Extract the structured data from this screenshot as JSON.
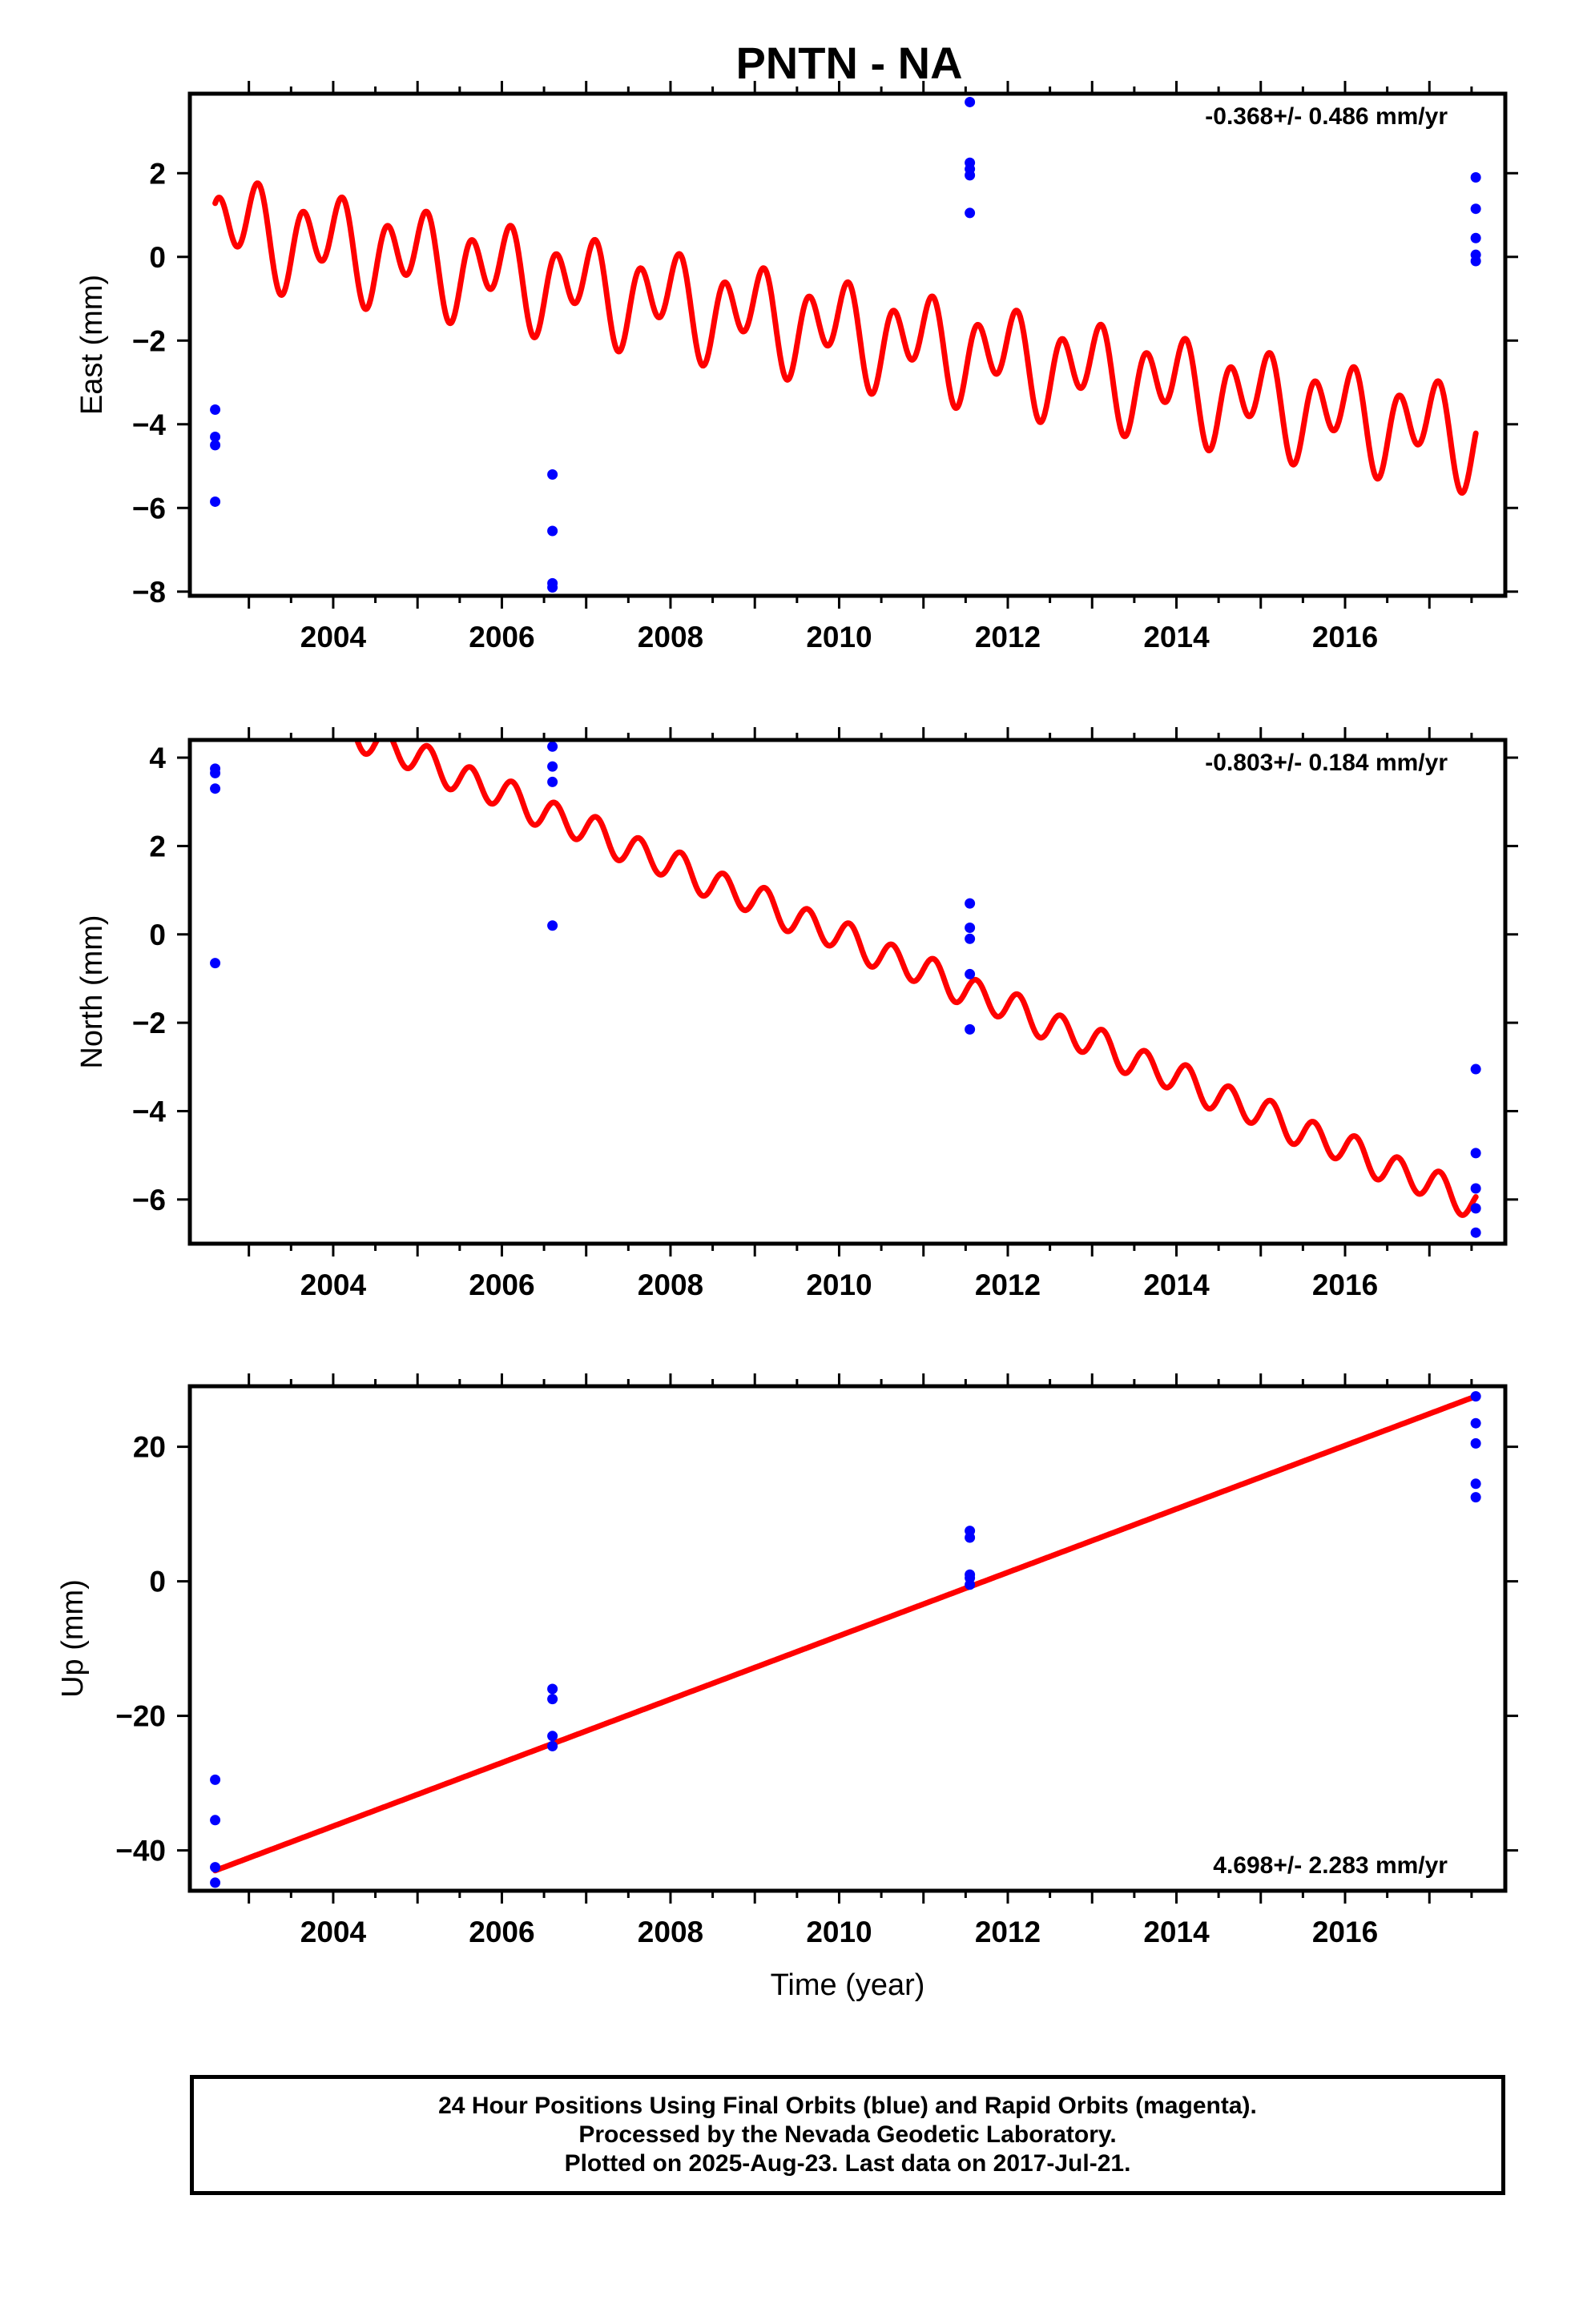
{
  "title": "PNTN - NA",
  "xlabel": "Time (year)",
  "colors": {
    "model": "#ff0000",
    "final_orbits": "#0000ff",
    "frame": "#000000"
  },
  "chart_data": [
    {
      "type": "scatter",
      "component": "East",
      "ylabel": "East (mm)",
      "rate": "-0.368+/- 0.486 mm/yr",
      "rate_position": "top-right",
      "xlim": [
        2002.3,
        2017.9
      ],
      "ylim": [
        -8.1,
        3.9
      ],
      "xticks": [
        "2004",
        "2006",
        "2008",
        "2010",
        "2012",
        "2014",
        "2016"
      ],
      "yticks": [
        "2",
        "0",
        "−2",
        "−4",
        "−6",
        "−8"
      ],
      "ytick_values": [
        2,
        0,
        -2,
        -4,
        -6,
        -8
      ],
      "grid": false,
      "series": [
        {
          "name": "Final Orbits",
          "color": "#0000ff",
          "points": [
            {
              "x": 2002.6,
              "y": -3.65
            },
            {
              "x": 2002.6,
              "y": -4.3
            },
            {
              "x": 2002.6,
              "y": -4.5
            },
            {
              "x": 2002.6,
              "y": -5.85
            },
            {
              "x": 2006.6,
              "y": -5.2
            },
            {
              "x": 2006.6,
              "y": -6.55
            },
            {
              "x": 2006.6,
              "y": -7.8
            },
            {
              "x": 2006.6,
              "y": -7.9
            },
            {
              "x": 2011.55,
              "y": 3.7
            },
            {
              "x": 2011.55,
              "y": 2.25
            },
            {
              "x": 2011.55,
              "y": 2.1
            },
            {
              "x": 2011.55,
              "y": 1.95
            },
            {
              "x": 2011.55,
              "y": 1.05
            },
            {
              "x": 2017.55,
              "y": 1.9
            },
            {
              "x": 2017.55,
              "y": 1.15
            },
            {
              "x": 2017.55,
              "y": 0.45
            },
            {
              "x": 2017.55,
              "y": 0.05
            },
            {
              "x": 2017.55,
              "y": -0.1
            }
          ]
        },
        {
          "name": "Model",
          "color": "#ff0000",
          "model": {
            "x_start": 2002.6,
            "x_end": 2017.55,
            "linear": [
              {
                "x": 2002.6,
                "y": 0.75
              },
              {
                "x": 2017.55,
                "y": -4.3
              }
            ],
            "annual_amplitude": 0.55,
            "annual_phase": -0.05,
            "semiannual_amplitude": 0.9,
            "semiannual_phase": 0.125
          }
        }
      ]
    },
    {
      "type": "scatter",
      "component": "North",
      "ylabel": "North (mm)",
      "rate": "-0.803+/- 0.184 mm/yr",
      "rate_position": "top-right",
      "xlim": [
        2002.3,
        2017.9
      ],
      "ylim": [
        -7.0,
        4.4
      ],
      "xticks": [
        "2004",
        "2006",
        "2008",
        "2010",
        "2012",
        "2014",
        "2016"
      ],
      "yticks": [
        "4",
        "2",
        "0",
        "−2",
        "−4",
        "−6"
      ],
      "ytick_values": [
        4,
        2,
        0,
        -2,
        -4,
        -6
      ],
      "grid": false,
      "series": [
        {
          "name": "Final Orbits",
          "color": "#0000ff",
          "points": [
            {
              "x": 2002.6,
              "y": 3.75
            },
            {
              "x": 2002.6,
              "y": 3.65
            },
            {
              "x": 2002.6,
              "y": 3.3
            },
            {
              "x": 2002.6,
              "y": -0.65
            },
            {
              "x": 2006.6,
              "y": 4.25
            },
            {
              "x": 2006.6,
              "y": 3.8
            },
            {
              "x": 2006.6,
              "y": 3.45
            },
            {
              "x": 2006.6,
              "y": 0.2
            },
            {
              "x": 2011.55,
              "y": 0.7
            },
            {
              "x": 2011.55,
              "y": 0.15
            },
            {
              "x": 2011.55,
              "y": -0.1
            },
            {
              "x": 2011.55,
              "y": -0.9
            },
            {
              "x": 2011.55,
              "y": -2.15
            },
            {
              "x": 2017.55,
              "y": -3.05
            },
            {
              "x": 2017.55,
              "y": -4.95
            },
            {
              "x": 2017.55,
              "y": -5.75
            },
            {
              "x": 2017.55,
              "y": -6.2
            },
            {
              "x": 2017.55,
              "y": -6.75
            }
          ]
        },
        {
          "name": "Model",
          "color": "#ff0000",
          "model": {
            "x_start": 2002.6,
            "x_end": 2017.55,
            "linear": [
              {
                "x": 2002.6,
                "y": 5.9
              },
              {
                "x": 2017.55,
                "y": -6.1
              }
            ],
            "annual_amplitude": 0.05,
            "annual_phase": 0.0,
            "semiannual_amplitude": 0.35,
            "semiannual_phase": 0.125
          }
        }
      ]
    },
    {
      "type": "scatter",
      "component": "Up",
      "ylabel": "Up (mm)",
      "rate": "4.698+/- 2.283 mm/yr",
      "rate_position": "bottom-right",
      "xlim": [
        2002.3,
        2017.9
      ],
      "ylim": [
        -46,
        29
      ],
      "xticks": [
        "2004",
        "2006",
        "2008",
        "2010",
        "2012",
        "2014",
        "2016"
      ],
      "yticks": [
        "20",
        "0",
        "−20",
        "−40"
      ],
      "ytick_values": [
        20,
        0,
        -20,
        -40
      ],
      "grid": false,
      "series": [
        {
          "name": "Final Orbits",
          "color": "#0000ff",
          "points": [
            {
              "x": 2002.6,
              "y": -29.5
            },
            {
              "x": 2002.6,
              "y": -35.5
            },
            {
              "x": 2002.6,
              "y": -42.5
            },
            {
              "x": 2002.6,
              "y": -44.8
            },
            {
              "x": 2006.6,
              "y": -16.0
            },
            {
              "x": 2006.6,
              "y": -17.5
            },
            {
              "x": 2006.6,
              "y": -23.0
            },
            {
              "x": 2006.6,
              "y": -24.5
            },
            {
              "x": 2011.55,
              "y": 7.5
            },
            {
              "x": 2011.55,
              "y": 6.5
            },
            {
              "x": 2011.55,
              "y": 1.0
            },
            {
              "x": 2011.55,
              "y": 0.5
            },
            {
              "x": 2011.55,
              "y": -0.5
            },
            {
              "x": 2017.55,
              "y": 27.5
            },
            {
              "x": 2017.55,
              "y": 23.5
            },
            {
              "x": 2017.55,
              "y": 20.5
            },
            {
              "x": 2017.55,
              "y": 14.5
            },
            {
              "x": 2017.55,
              "y": 12.5
            }
          ]
        },
        {
          "name": "Model",
          "color": "#ff0000",
          "model": {
            "x_start": 2002.6,
            "x_end": 2017.55,
            "linear": [
              {
                "x": 2002.6,
                "y": -43.0
              },
              {
                "x": 2017.55,
                "y": 27.5
              }
            ],
            "annual_amplitude": 0,
            "annual_phase": 0,
            "semiannual_amplitude": 0,
            "semiannual_phase": 0
          }
        }
      ]
    }
  ],
  "footer": {
    "line1": "24 Hour Positions Using Final Orbits (blue) and Rapid Orbits (magenta).",
    "line2": "Processed by the Nevada Geodetic Laboratory.",
    "line3": "Plotted on 2025-Aug-23. Last data on 2017-Jul-21."
  }
}
